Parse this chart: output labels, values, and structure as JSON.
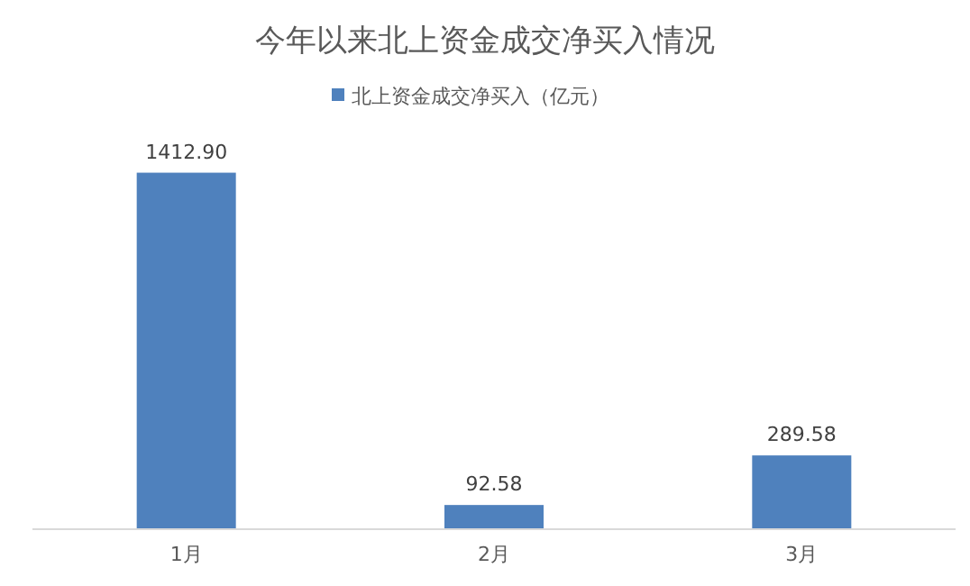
{
  "chart_data": {
    "type": "bar",
    "title": "今年以来北上资金成交净买入情况",
    "categories": [
      "1月",
      "2月",
      "3月"
    ],
    "series": [
      {
        "name": "北上资金成交净买入（亿元）",
        "color": "#4f81bd",
        "values": [
          1412.9,
          92.58,
          289.58
        ],
        "value_labels": [
          "1412.90",
          "92.58",
          "289.58"
        ]
      }
    ],
    "legend": "top"
  }
}
